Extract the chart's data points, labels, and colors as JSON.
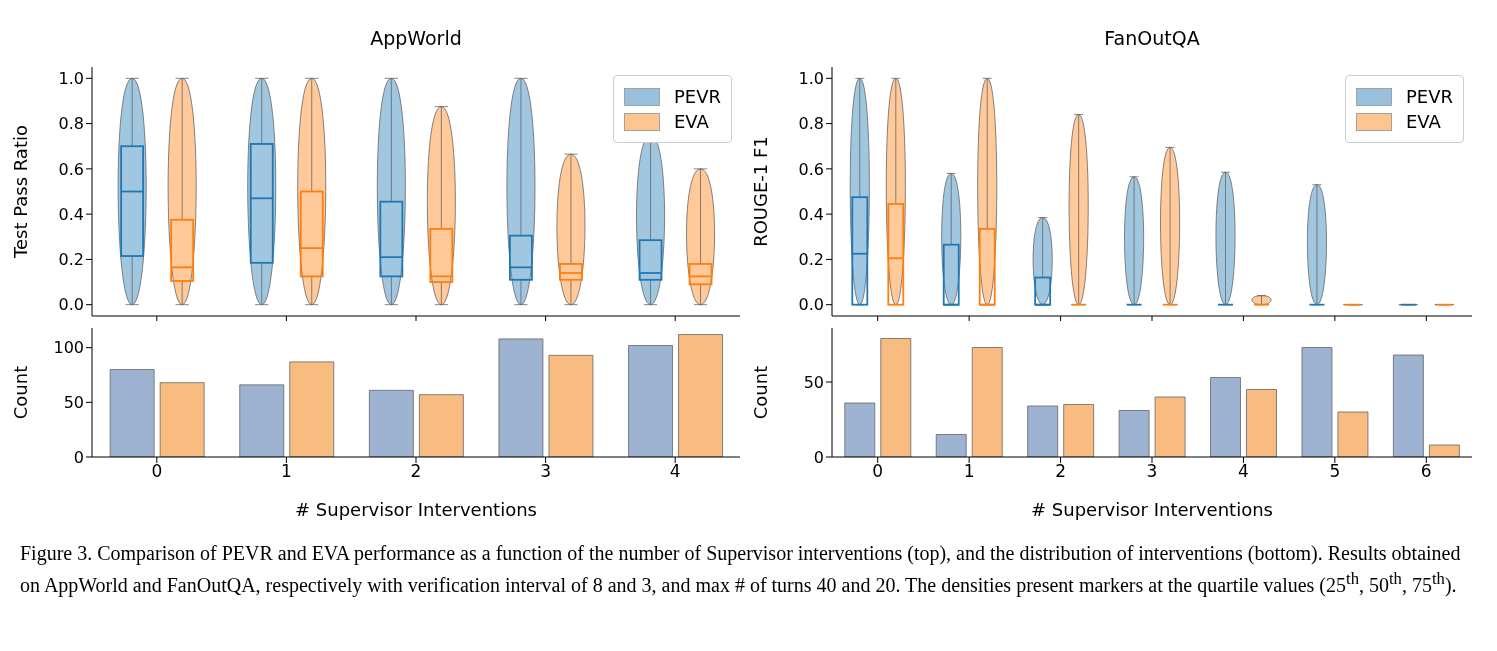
{
  "chart_data": [
    {
      "type": "box",
      "title": "AppWorld",
      "ylabel": "Test Pass Ratio",
      "categories": [
        "0",
        "1",
        "2",
        "3",
        "4"
      ],
      "ylim": [
        -0.05,
        1.05
      ],
      "yticks": [
        {
          "value": 0,
          "label": "0.0"
        },
        {
          "value": 0.2,
          "label": "0.2"
        },
        {
          "value": 0.4,
          "label": "0.4"
        },
        {
          "value": 0.6,
          "label": "0.6"
        },
        {
          "value": 0.8,
          "label": "0.8"
        },
        {
          "value": 1,
          "label": "1.0"
        }
      ],
      "tick_labels": "y",
      "legend": "top right",
      "series": [
        {
          "name": "PEVR",
          "color": "#1f77b4",
          "boxes": [
            {
              "low": 0,
              "q1": 0.215,
              "median": 0.5,
              "q3": 0.7,
              "high": 1
            },
            {
              "low": 0,
              "q1": 0.185,
              "median": 0.47,
              "q3": 0.71,
              "high": 1
            },
            {
              "low": 0,
              "q1": 0.125,
              "median": 0.21,
              "q3": 0.455,
              "high": 1
            },
            {
              "low": 0,
              "q1": 0.11,
              "median": 0.165,
              "q3": 0.305,
              "high": 1
            },
            {
              "low": 0,
              "q1": 0.11,
              "median": 0.14,
              "q3": 0.285,
              "high": 0.75
            }
          ]
        },
        {
          "name": "EVA",
          "color": "#ff7f0e",
          "boxes": [
            {
              "low": 0,
              "q1": 0.105,
              "median": 0.165,
              "q3": 0.375,
              "high": 1
            },
            {
              "low": 0,
              "q1": 0.125,
              "median": 0.25,
              "q3": 0.5,
              "high": 1
            },
            {
              "low": 0,
              "q1": 0.1,
              "median": 0.125,
              "q3": 0.335,
              "high": 0.875
            },
            {
              "low": 0,
              "q1": 0.11,
              "median": 0.14,
              "q3": 0.18,
              "high": 0.665
            },
            {
              "low": 0,
              "q1": 0.09,
              "median": 0.125,
              "q3": 0.18,
              "high": 0.6
            }
          ]
        }
      ]
    },
    {
      "type": "bar",
      "ylabel": "Count",
      "xlabel": "# Supervisor Interventions",
      "categories": [
        "0",
        "1",
        "2",
        "3",
        "4"
      ],
      "ylim": [
        0,
        118
      ],
      "yticks": [
        0,
        50,
        100
      ],
      "series": [
        {
          "color": "#9db3d1",
          "values": [
            80,
            66,
            61,
            108,
            102
          ]
        },
        {
          "color": "#f8bb80",
          "values": [
            68,
            87,
            57,
            93,
            112
          ]
        }
      ]
    },
    {
      "type": "box",
      "title": "FanOutQA",
      "ylabel": "ROUGE-1 F1",
      "categories": [
        "0",
        "1",
        "2",
        "3",
        "4",
        "5",
        "6"
      ],
      "ylim": [
        -0.05,
        1.05
      ],
      "yticks": [
        {
          "value": 0,
          "label": "0.0"
        },
        {
          "value": 0.2,
          "label": "0.2"
        },
        {
          "value": 0.4,
          "label": "0.4"
        },
        {
          "value": 0.6,
          "label": "0.6"
        },
        {
          "value": 0.8,
          "label": "0.8"
        },
        {
          "value": 1,
          "label": "1.0"
        }
      ],
      "tick_labels": "y",
      "legend": "top right",
      "series": [
        {
          "name": "PEVR",
          "color": "#1f77b4",
          "boxes": [
            {
              "low": 0,
              "q1": 0,
              "median": 0.225,
              "q3": 0.475,
              "high": 1
            },
            {
              "low": 0,
              "q1": 0,
              "median": 0,
              "q3": 0.265,
              "high": 0.58
            },
            {
              "low": 0,
              "q1": 0,
              "median": 0,
              "q3": 0.12,
              "high": 0.385
            },
            {
              "low": 0,
              "q1": 0,
              "median": 0,
              "q3": 0,
              "high": 0.565
            },
            {
              "low": 0,
              "q1": 0,
              "median": 0,
              "q3": 0,
              "high": 0.585
            },
            {
              "low": 0,
              "q1": 0,
              "median": 0,
              "q3": 0,
              "high": 0.53
            },
            {
              "low": 0,
              "q1": 0,
              "median": 0,
              "q3": 0,
              "high": 0
            }
          ]
        },
        {
          "name": "EVA",
          "color": "#ff7f0e",
          "boxes": [
            {
              "low": 0,
              "q1": 0,
              "median": 0.205,
              "q3": 0.445,
              "high": 1
            },
            {
              "low": 0,
              "q1": 0,
              "median": 0,
              "q3": 0.335,
              "high": 1
            },
            {
              "low": 0,
              "q1": 0,
              "median": 0,
              "q3": 0,
              "high": 0.84
            },
            {
              "low": 0,
              "q1": 0,
              "median": 0,
              "q3": 0,
              "high": 0.695
            },
            {
              "low": 0,
              "q1": 0,
              "median": 0,
              "q3": 0,
              "high": 0.04
            },
            {
              "low": 0,
              "q1": 0,
              "median": 0,
              "q3": 0,
              "high": 0
            },
            {
              "low": 0,
              "q1": 0,
              "median": 0,
              "q3": 0,
              "high": 0
            }
          ]
        }
      ]
    },
    {
      "type": "bar",
      "ylabel": "Count",
      "xlabel": "# Supervisor Interventions",
      "categories": [
        "0",
        "1",
        "2",
        "3",
        "4",
        "5",
        "6"
      ],
      "ylim": [
        0,
        86
      ],
      "yticks": [
        0,
        50
      ],
      "series": [
        {
          "color": "#9db3d1",
          "values": [
            36,
            15,
            34,
            31,
            53,
            73,
            68
          ]
        },
        {
          "color": "#f8bb80",
          "values": [
            79,
            73,
            35,
            40,
            45,
            30,
            8
          ]
        }
      ],
      "annotations": [
        "Figure 3. Comparison of PEVR and EVA performance as a function of the number of Supervisor interventions (top), and the distribution of interventions (bottom). Results obtained on AppWorld and FanOutQA, respectively with verification interval of 8 and 3, and max # of turns 40 and 20. The densities present markers at the quartile values (25$^{th}$, 50$^{th}$, 75$^{th}$)."
      ]
    }
  ]
}
